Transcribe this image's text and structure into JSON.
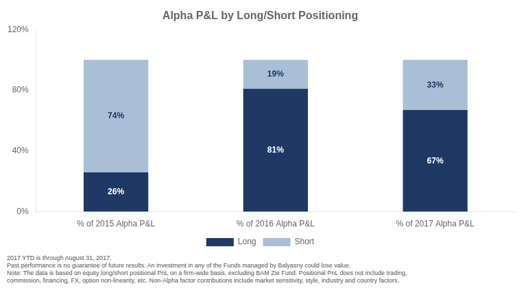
{
  "chart_data": {
    "type": "bar",
    "title": "Alpha P&L by Long/Short Positioning",
    "categories": [
      "% of 2015 Alpha P&L",
      "% of 2016 Alpha P&L",
      "% of 2017 Alpha P&L"
    ],
    "series": [
      {
        "name": "Long",
        "color": "#1F3864",
        "values": [
          26,
          81,
          67
        ],
        "value_labels": [
          "26%",
          "81%",
          "67%"
        ]
      },
      {
        "name": "Short",
        "color": "#A9BFD6",
        "values": [
          74,
          19,
          33
        ],
        "value_labels": [
          "74%",
          "19%",
          "33%"
        ]
      }
    ],
    "stacked": true,
    "data_labels": true,
    "ylim": [
      0,
      120
    ],
    "yticks": [
      {
        "value": 0,
        "label": "0%"
      },
      {
        "value": 40,
        "label": "40%"
      },
      {
        "value": 80,
        "label": "80%"
      },
      {
        "value": 120,
        "label": "120%"
      }
    ],
    "grid": false,
    "legend": "bottom",
    "annotations": [
      "2017 YTD is through August 31, 2017.",
      "Past performance is no guarantee of future results. An investment in any of the Funds managed by Balyasny could lose value.",
      "Note: The data is based on equity long/short positional PnL on a firm-wide basis, excluding BAM Zie Fund. Positional PnL does not include trading,",
      "commission, financing, FX, option non-linearity, etc. Non-Alpha factor contributions include market sensitivity, style, industry and country factors."
    ]
  }
}
